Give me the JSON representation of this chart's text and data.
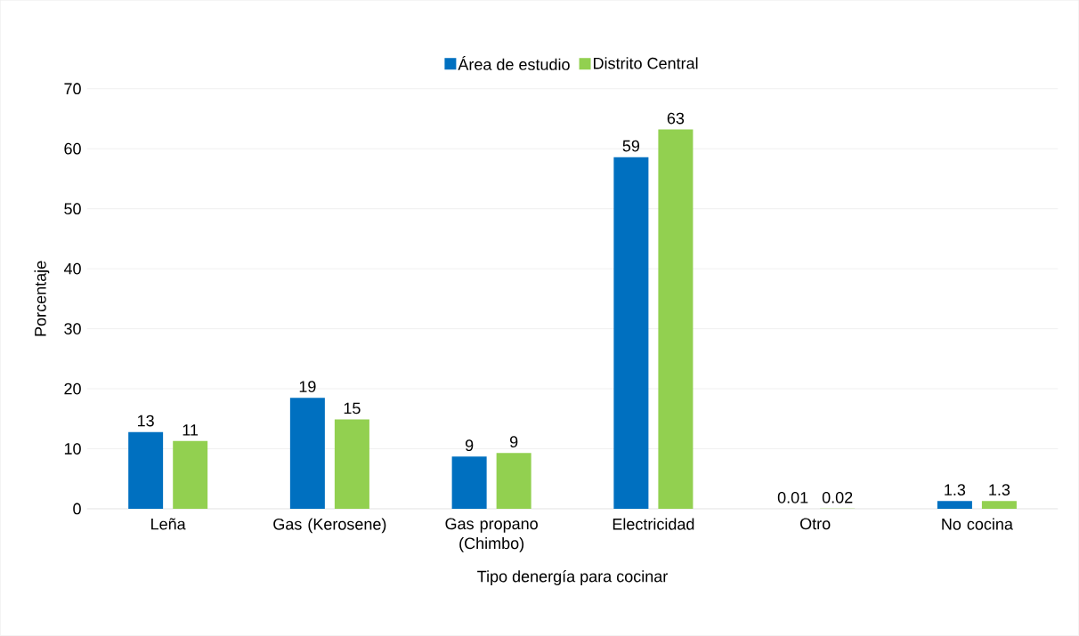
{
  "chart_data": {
    "type": "bar",
    "xlabel": "Tipo denergía para cocinar",
    "ylabel": "Porcentaje",
    "categories": [
      "Leña",
      "Gas (Kerosene)",
      "Gas propano (Chimbo)",
      "Electricidad",
      "Otro",
      "No cocina"
    ],
    "series": [
      {
        "name": "Área de estudio",
        "color": "#0070c0",
        "values": [
          12.8,
          18.5,
          8.7,
          58.6,
          0.01,
          1.3
        ],
        "value_labels": [
          "13",
          "19",
          "9",
          "59",
          "0.01",
          "1.3"
        ]
      },
      {
        "name": "Distrito Central",
        "color": "#92d050",
        "values": [
          11.3,
          14.9,
          9.3,
          63.2,
          0.02,
          1.3
        ],
        "value_labels": [
          "11",
          "15",
          "9",
          "63",
          "0.02",
          "1.3"
        ]
      }
    ],
    "ylim": [
      0,
      70
    ],
    "yticks": [
      0,
      10,
      20,
      30,
      40,
      50,
      60,
      70
    ],
    "grid": "y",
    "legend": "top"
  }
}
